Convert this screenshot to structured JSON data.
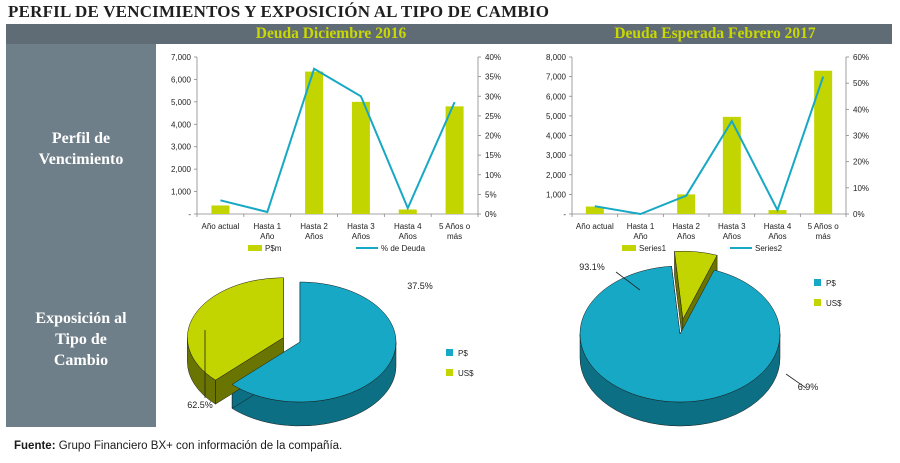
{
  "title": "PERFIL DE VENCIMIENTOS Y EXPOSICIÓN AL TIPO DE CAMBIO",
  "headers": [
    "Deuda Diciembre 2016",
    "Deuda Esperada Febrero 2017"
  ],
  "row_labels": {
    "perfil": [
      "Perfil de",
      "Vencimiento"
    ],
    "exposicion": [
      "Exposición al",
      "Tipo de",
      "Cambio"
    ]
  },
  "footer": {
    "label": "Fuente:",
    "text": " Grupo Financiero BX+ con información de la compañía."
  },
  "colors": {
    "green": "#c2d500",
    "green_dark": "#6a7400",
    "cyan": "#16a8c4",
    "cyan_dark": "#0c6f83",
    "panel": "#6f7f89",
    "header_text": "#c9d800"
  },
  "chart_data": [
    {
      "type": "bar",
      "title": "Deuda Diciembre 2016",
      "categories": [
        [
          "Año actual"
        ],
        [
          "Hasta 1",
          "Año"
        ],
        [
          "Hasta 2",
          "Años"
        ],
        [
          "Hasta 3",
          "Años"
        ],
        [
          "Hasta 4",
          "Años"
        ],
        [
          "5 Años o",
          "más"
        ]
      ],
      "series": [
        {
          "name": "P$m",
          "kind": "bar",
          "axis": "left",
          "values": [
            380,
            0,
            6350,
            5000,
            200,
            4800
          ]
        },
        {
          "name": "% de Deuda",
          "kind": "line",
          "axis": "right",
          "values": [
            3.5,
            0.5,
            37,
            30,
            1.5,
            28.5
          ]
        }
      ],
      "y_left": {
        "ticks": [
          "-",
          "1,000",
          "2,000",
          "3,000",
          "4,000",
          "5,000",
          "6,000",
          "7,000"
        ],
        "ylim": [
          0,
          7000
        ]
      },
      "y_right": {
        "ticks": [
          "0%",
          "5%",
          "10%",
          "15%",
          "20%",
          "25%",
          "30%",
          "35%",
          "40%"
        ],
        "ylim": [
          0,
          40
        ]
      },
      "legend": "bottom"
    },
    {
      "type": "bar",
      "title": "Deuda Esperada Febrero 2017",
      "categories": [
        [
          "Año actual"
        ],
        [
          "Hasta 1",
          "Año"
        ],
        [
          "Hasta 2",
          "Años"
        ],
        [
          "Hasta 3",
          "Años"
        ],
        [
          "Hasta 4",
          "Años"
        ],
        [
          "5 Años o",
          "más"
        ]
      ],
      "series": [
        {
          "name": "Series1",
          "kind": "bar",
          "axis": "left",
          "values": [
            380,
            0,
            1000,
            4950,
            200,
            7300
          ]
        },
        {
          "name": "Series2",
          "kind": "line",
          "axis": "right",
          "values": [
            3,
            0,
            7,
            35.5,
            1.5,
            52.5
          ]
        }
      ],
      "y_left": {
        "ticks": [
          "-",
          "1,000",
          "2,000",
          "3,000",
          "4,000",
          "5,000",
          "6,000",
          "7,000",
          "8,000"
        ],
        "ylim": [
          0,
          8000
        ]
      },
      "y_right": {
        "ticks": [
          "0%",
          "10%",
          "20%",
          "30%",
          "40%",
          "50%",
          "60%"
        ],
        "ylim": [
          0,
          60
        ]
      },
      "legend": "bottom"
    },
    {
      "type": "pie",
      "title": "",
      "slices": [
        {
          "label": "P$",
          "value": 62.5,
          "text": "62.5%"
        },
        {
          "label": "US$",
          "value": 37.5,
          "text": "37.5%"
        }
      ],
      "legend": "right"
    },
    {
      "type": "pie",
      "title": "",
      "slices": [
        {
          "label": "P$",
          "value": 93.1,
          "text": "93.1%"
        },
        {
          "label": "US$",
          "value": 6.9,
          "text": "6.9%"
        }
      ],
      "legend": "right"
    }
  ]
}
